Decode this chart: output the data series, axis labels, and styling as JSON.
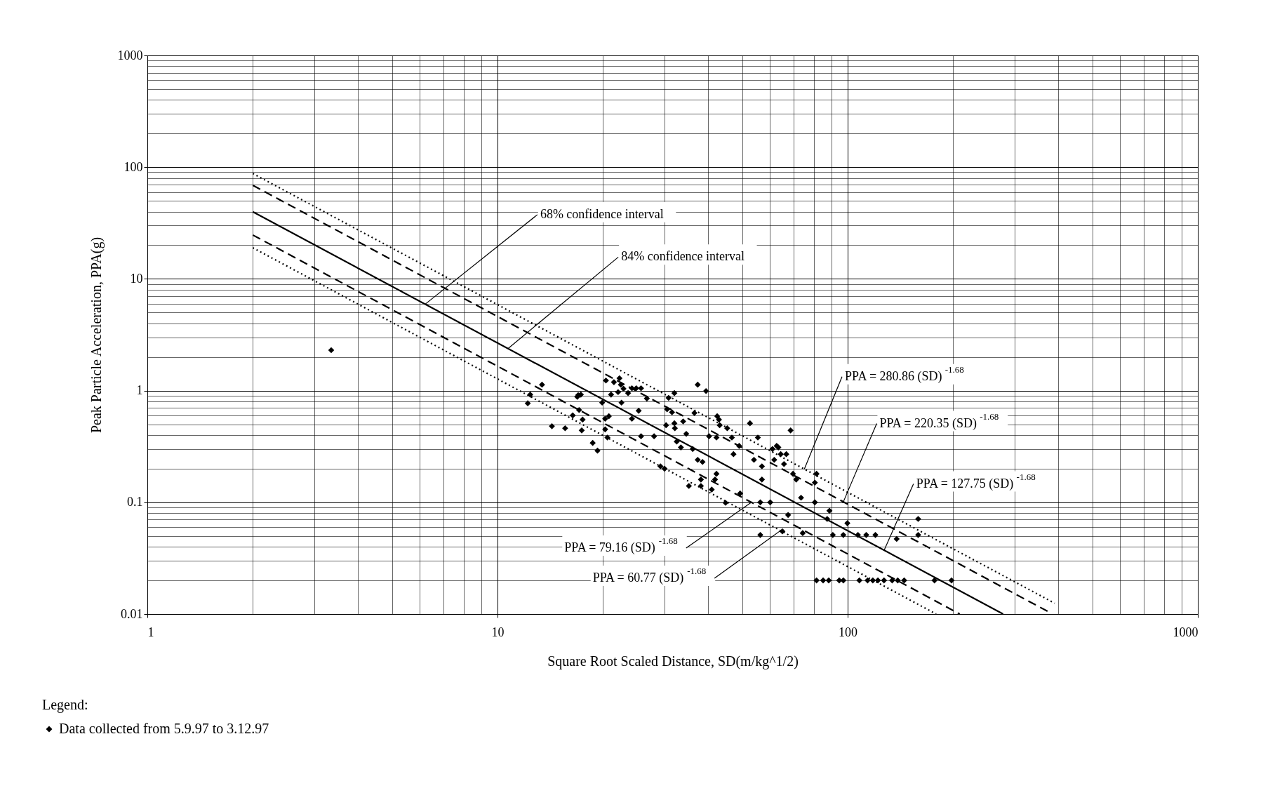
{
  "chart_data": {
    "type": "scatter",
    "xlabel": "Square Root Scaled Distance, SD(m/kg^1/2)",
    "ylabel": "Peak Particle Acceleration, PPA(g)",
    "legend_title": "Legend:",
    "log": "xy",
    "grid": true,
    "legend": "bottom left",
    "xlim": [
      1,
      1000
    ],
    "ylim": [
      0.01,
      1000
    ],
    "xticks": [
      1,
      10,
      100,
      1000
    ],
    "yticks": [
      0.01,
      0.1,
      1,
      10,
      100,
      1000
    ],
    "series": [
      {
        "name": "Data collected from 5.9.97 to 3.12.97",
        "color": "#000000",
        "marker": "diamond",
        "x": [
          3.35,
          12.2,
          12.4,
          13.4,
          14.3,
          15.6,
          16.4,
          16.9,
          17.3,
          17.1,
          17.5,
          17.4,
          17.0,
          18.7,
          19.3,
          19.9,
          20.4,
          20.3,
          20.3,
          20.6,
          20.8,
          21.1,
          21.5,
          22.3,
          22.5,
          22.9,
          22.1,
          22.6,
          23.6,
          24.2,
          24.9,
          25.7,
          24.2,
          25.3,
          25.7,
          26.7,
          28.0,
          29.2,
          30.0,
          30.3,
          30.5,
          30.8,
          32.0,
          31.5,
          32.0,
          32.1,
          32.5,
          33.4,
          33.9,
          34.6,
          35.2,
          36.5,
          37.3,
          38.1,
          38.5,
          39.4,
          40.2,
          40.9,
          41.8,
          42.2,
          42.4,
          42.9,
          43.1,
          45.3,
          46.7,
          47.2,
          49.0,
          49.3,
          52.6,
          54.0,
          55.4,
          56.3,
          56.9,
          56.9,
          61.0,
          61.7,
          62.7,
          63.4,
          64.4,
          65.8,
          66.8,
          68.7,
          69.8,
          71.3,
          73.6,
          74.4,
          80.6,
          81.5,
          80.6,
          87.4,
          90.7,
          97.2,
          99.8,
          107,
          113,
          120,
          138,
          159,
          159,
          81.5,
          85.1,
          88.3,
          94.6,
          97.2,
          108,
          114,
          118,
          122,
          127,
          134,
          139,
          145,
          177,
          198,
          88.7,
          67.6,
          65.1,
          60.1,
          56.3,
          44.8,
          42.2,
          38.1,
          37.3,
          36.1
        ],
        "values": [
          2.3,
          0.77,
          0.92,
          1.13,
          0.48,
          0.46,
          0.6,
          0.88,
          0.92,
          0.67,
          0.55,
          0.44,
          0.91,
          0.34,
          0.29,
          0.78,
          1.23,
          0.56,
          0.45,
          0.38,
          0.59,
          0.92,
          1.19,
          1.29,
          1.13,
          1.04,
          0.97,
          0.78,
          0.95,
          1.05,
          1.05,
          1.05,
          0.56,
          0.66,
          0.39,
          0.85,
          0.39,
          0.21,
          0.2,
          0.49,
          0.68,
          0.86,
          0.95,
          0.64,
          0.51,
          0.46,
          0.35,
          0.31,
          0.53,
          0.41,
          0.14,
          0.63,
          1.13,
          0.14,
          0.23,
          0.99,
          0.39,
          0.13,
          0.16,
          0.38,
          0.59,
          0.55,
          0.49,
          0.46,
          0.38,
          0.27,
          0.32,
          0.12,
          0.51,
          0.24,
          0.38,
          0.051,
          0.21,
          0.16,
          0.3,
          0.24,
          0.32,
          0.31,
          0.27,
          0.22,
          0.27,
          0.44,
          0.18,
          0.16,
          0.11,
          0.053,
          0.15,
          0.18,
          0.1,
          0.071,
          0.051,
          0.051,
          0.065,
          0.051,
          0.051,
          0.051,
          0.047,
          0.071,
          0.051,
          0.02,
          0.02,
          0.02,
          0.02,
          0.02,
          0.02,
          0.02,
          0.02,
          0.02,
          0.02,
          0.02,
          0.02,
          0.02,
          0.02,
          0.02,
          0.084,
          0.077,
          0.055,
          0.1,
          0.1,
          0.099,
          0.18,
          0.16,
          0.24,
          0.3
        ]
      },
      {
        "type": "line",
        "color": "#000000",
        "line_style": "dotted",
        "x": [
          2,
          390
        ],
        "values": [
          87.8,
          0.0125
        ]
      },
      {
        "type": "line",
        "color": "#000000",
        "line_style": "dashed",
        "x": [
          2,
          374
        ],
        "values": [
          68.8,
          0.0105
        ]
      },
      {
        "type": "line",
        "color": "#000000",
        "line_style": "solid",
        "x": [
          2,
          278
        ],
        "values": [
          39.9,
          0.01
        ]
      },
      {
        "type": "line",
        "color": "#000000",
        "line_style": "dashed",
        "x": [
          2,
          209
        ],
        "values": [
          24.7,
          0.01
        ]
      },
      {
        "type": "line",
        "color": "#000000",
        "line_style": "dotted",
        "x": [
          2,
          179
        ],
        "values": [
          19.0,
          0.01
        ]
      }
    ],
    "annotations": [
      {
        "text": "68% confidence interval",
        "x": 6.2,
        "y": 5.9
      },
      {
        "text": "84% confidence interval",
        "x": 10.7,
        "y": 2.37
      },
      {
        "text": "PPA = 280.86 (SD)$^{-1.68}$",
        "x": 75.2,
        "y": 0.198
      },
      {
        "text": "PPA = 220.35 (SD)$^{-1.68}$",
        "x": 97.2,
        "y": 0.101
      },
      {
        "text": "PPA = 127.75 (SD)$^{-1.68}$",
        "x": 127,
        "y": 0.037
      },
      {
        "text": "PPA = 79.16 (SD)$^{-1.68}$",
        "x": 53.1,
        "y": 0.1
      },
      {
        "text": "PPA = 60.77 (SD)$^{-1.68}$",
        "x": 64.4,
        "y": 0.056
      }
    ]
  }
}
